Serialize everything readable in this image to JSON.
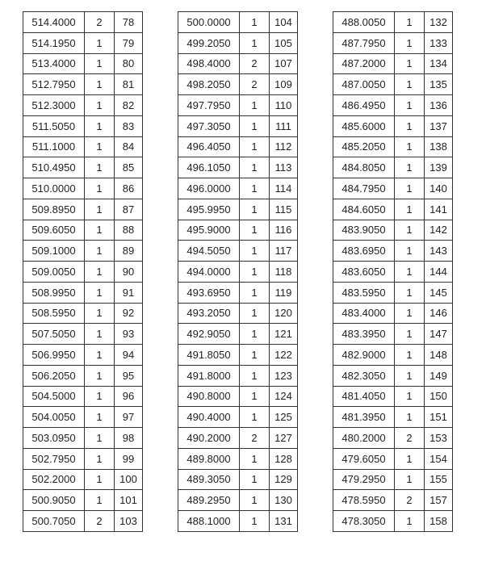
{
  "tables": [
    {
      "rows": [
        [
          "514.4000",
          2,
          78
        ],
        [
          "514.1950",
          1,
          79
        ],
        [
          "513.4000",
          1,
          80
        ],
        [
          "512.7950",
          1,
          81
        ],
        [
          "512.3000",
          1,
          82
        ],
        [
          "511.5050",
          1,
          83
        ],
        [
          "511.1000",
          1,
          84
        ],
        [
          "510.4950",
          1,
          85
        ],
        [
          "510.0000",
          1,
          86
        ],
        [
          "509.8950",
          1,
          87
        ],
        [
          "509.6050",
          1,
          88
        ],
        [
          "509.1000",
          1,
          89
        ],
        [
          "509.0050",
          1,
          90
        ],
        [
          "508.9950",
          1,
          91
        ],
        [
          "508.5950",
          1,
          92
        ],
        [
          "507.5050",
          1,
          93
        ],
        [
          "506.9950",
          1,
          94
        ],
        [
          "506.2050",
          1,
          95
        ],
        [
          "504.5000",
          1,
          96
        ],
        [
          "504.0050",
          1,
          97
        ],
        [
          "503.0950",
          1,
          98
        ],
        [
          "502.7950",
          1,
          99
        ],
        [
          "502.2000",
          1,
          100
        ],
        [
          "500.9050",
          1,
          101
        ],
        [
          "500.7050",
          2,
          103
        ]
      ]
    },
    {
      "rows": [
        [
          "500.0000",
          1,
          104
        ],
        [
          "499.2050",
          1,
          105
        ],
        [
          "498.4000",
          2,
          107
        ],
        [
          "498.2050",
          2,
          109
        ],
        [
          "497.7950",
          1,
          110
        ],
        [
          "497.3050",
          1,
          111
        ],
        [
          "496.4050",
          1,
          112
        ],
        [
          "496.1050",
          1,
          113
        ],
        [
          "496.0000",
          1,
          114
        ],
        [
          "495.9950",
          1,
          115
        ],
        [
          "495.9000",
          1,
          116
        ],
        [
          "494.5050",
          1,
          117
        ],
        [
          "494.0000",
          1,
          118
        ],
        [
          "493.6950",
          1,
          119
        ],
        [
          "493.2050",
          1,
          120
        ],
        [
          "492.9050",
          1,
          121
        ],
        [
          "491.8050",
          1,
          122
        ],
        [
          "491.8000",
          1,
          123
        ],
        [
          "490.8000",
          1,
          124
        ],
        [
          "490.4000",
          1,
          125
        ],
        [
          "490.2000",
          2,
          127
        ],
        [
          "489.8000",
          1,
          128
        ],
        [
          "489.3050",
          1,
          129
        ],
        [
          "489.2950",
          1,
          130
        ],
        [
          "488.1000",
          1,
          131
        ]
      ]
    },
    {
      "rows": [
        [
          "488.0050",
          1,
          132
        ],
        [
          "487.7950",
          1,
          133
        ],
        [
          "487.2000",
          1,
          134
        ],
        [
          "487.0050",
          1,
          135
        ],
        [
          "486.4950",
          1,
          136
        ],
        [
          "485.6000",
          1,
          137
        ],
        [
          "485.2050",
          1,
          138
        ],
        [
          "484.8050",
          1,
          139
        ],
        [
          "484.7950",
          1,
          140
        ],
        [
          "484.6050",
          1,
          141
        ],
        [
          "483.9050",
          1,
          142
        ],
        [
          "483.6950",
          1,
          143
        ],
        [
          "483.6050",
          1,
          144
        ],
        [
          "483.5950",
          1,
          145
        ],
        [
          "483.4000",
          1,
          146
        ],
        [
          "483.3950",
          1,
          147
        ],
        [
          "482.9000",
          1,
          148
        ],
        [
          "482.3050",
          1,
          149
        ],
        [
          "481.4050",
          1,
          150
        ],
        [
          "481.3950",
          1,
          151
        ],
        [
          "480.2000",
          2,
          153
        ],
        [
          "479.6050",
          1,
          154
        ],
        [
          "479.2950",
          1,
          155
        ],
        [
          "478.5950",
          2,
          157
        ],
        [
          "478.3050",
          1,
          158
        ]
      ]
    }
  ]
}
